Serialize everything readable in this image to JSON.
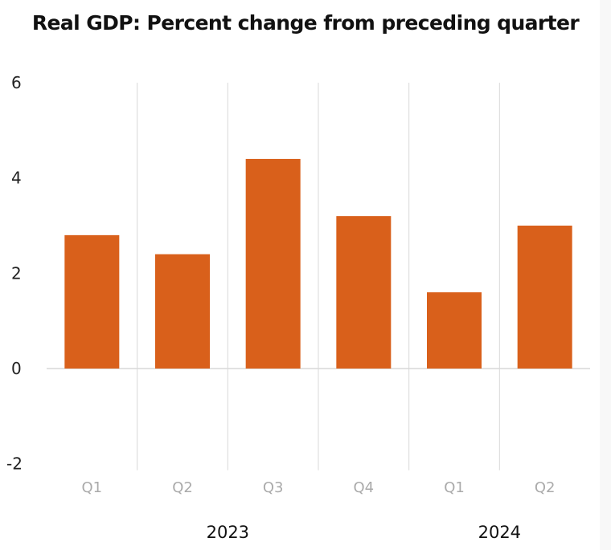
{
  "chart_data": {
    "type": "bar",
    "title": "Real GDP:  Percent change from preceding quarter",
    "xlabel": "",
    "ylabel": "",
    "categories": [
      "Q1",
      "Q2",
      "Q3",
      "Q4",
      "Q1",
      "Q2"
    ],
    "groups": [
      {
        "label": "2023",
        "count": 4
      },
      {
        "label": "2024",
        "count": 2
      }
    ],
    "values": [
      2.8,
      2.4,
      4.4,
      3.2,
      1.6,
      3.0
    ],
    "ylim": [
      -2,
      6
    ],
    "yticks": [
      -2,
      0,
      2,
      4,
      6
    ],
    "grid": "vertical separators between categories",
    "legend": "none",
    "bar_color": "#d9601b"
  }
}
